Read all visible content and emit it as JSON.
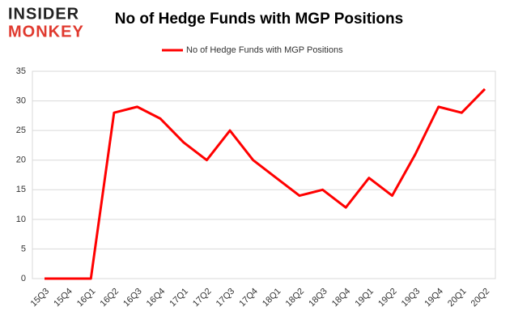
{
  "logo": {
    "top": "INSIDER",
    "bottom": "MONKEY"
  },
  "chart_data": {
    "type": "line",
    "title": "No of Hedge Funds with MGP Positions",
    "categories": [
      "15Q3",
      "15Q4",
      "16Q1",
      "16Q2",
      "16Q3",
      "16Q4",
      "17Q1",
      "17Q2",
      "17Q3",
      "17Q4",
      "18Q1",
      "18Q2",
      "18Q3",
      "18Q4",
      "19Q1",
      "19Q2",
      "19Q3",
      "19Q4",
      "20Q1",
      "20Q2"
    ],
    "series": [
      {
        "name": "No of Hedge Funds with MGP Positions",
        "color": "#ff0000",
        "values": [
          0,
          0,
          0,
          28,
          29,
          27,
          23,
          20,
          25,
          20,
          17,
          14,
          15,
          12,
          17,
          14,
          21,
          29,
          28,
          32
        ]
      }
    ],
    "ylim": [
      0,
      35
    ],
    "yticks": [
      0,
      5,
      10,
      15,
      20,
      25,
      30,
      35
    ],
    "grid": true,
    "legend": "top"
  }
}
